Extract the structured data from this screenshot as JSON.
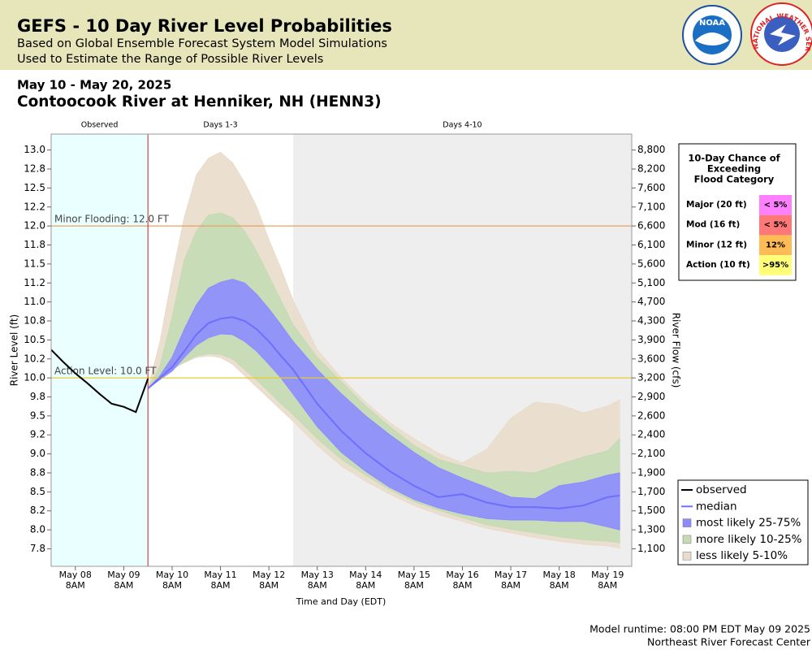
{
  "header": {
    "title": "GEFS - 10 Day River Level Probabilities",
    "subtitle_lines": [
      "Based on Global Ensemble Forecast System Model Simulations",
      "Used to Estimate the Range of Possible River Levels"
    ],
    "logos": [
      "NOAA",
      "NATIONAL WEATHER SERVICE"
    ]
  },
  "chart_data": {
    "type": "line",
    "date_range": "May 10 - May 20, 2025",
    "title": "Contoocook River at Henniker, NH (HENN3)",
    "xlabel": "Time and Day (EDT)",
    "ylabel": "River Level (ft)",
    "y2label": "River Flow (cfs)",
    "periods": [
      {
        "label": "Observed",
        "start": "May 07 8PM",
        "end": "May 09 8PM",
        "color": "#eaffff"
      },
      {
        "label": "Days 1-3",
        "start": "May 09 8PM",
        "end": "May 12 8PM",
        "color": "#ffffff"
      },
      {
        "label": "Days 4-10",
        "start": "May 12 8PM",
        "end": "May 19 8PM",
        "color": "#eeeeee"
      }
    ],
    "xlim": [
      "May 07 8PM",
      "May 19 8PM"
    ],
    "xticks": [
      "May 08 8AM",
      "May 09 8AM",
      "May 10 8AM",
      "May 11 8AM",
      "May 12 8AM",
      "May 13 8AM",
      "May 14 8AM",
      "May 15 8AM",
      "May 16 8AM",
      "May 17 8AM",
      "May 18 8AM",
      "May 19 8AM"
    ],
    "ylim": [
      7.52,
      13.21
    ],
    "yticks": [
      {
        "value": 7.75,
        "label": "7.8"
      },
      {
        "value": 8,
        "label": "8.0"
      },
      {
        "value": 8.25,
        "label": "8.2"
      },
      8.5,
      {
        "value": 8.75,
        "label": "8.8"
      },
      {
        "value": 9,
        "label": "9.0"
      },
      {
        "value": 9.25,
        "label": "9.2"
      },
      9.5,
      {
        "value": 9.75,
        "label": "9.8"
      },
      {
        "value": 10,
        "label": "10.0"
      },
      {
        "value": 10.25,
        "label": "10.2"
      },
      10.5,
      {
        "value": 10.75,
        "label": "10.8"
      },
      {
        "value": 11,
        "label": "11.0"
      },
      {
        "value": 11.25,
        "label": "11.2"
      },
      11.5,
      {
        "value": 11.75,
        "label": "11.8"
      },
      {
        "value": 12,
        "label": "12.0"
      },
      {
        "value": 12.25,
        "label": "12.2"
      },
      12.5,
      {
        "value": 12.75,
        "label": "12.8"
      },
      {
        "value": 13,
        "label": "13.0"
      }
    ],
    "y2ticks": [
      {
        "value": 1100,
        "label": "1,100"
      },
      {
        "value": 1300,
        "label": "1,300"
      },
      {
        "value": 1500,
        "label": "1,500"
      },
      {
        "value": 1700,
        "label": "1,700"
      },
      {
        "value": 1900,
        "label": "1,900"
      },
      {
        "value": 2100,
        "label": "2,100"
      },
      {
        "value": 2400,
        "label": "2,400"
      },
      {
        "value": 2600,
        "label": "2,600"
      },
      {
        "value": 2900,
        "label": "2,900"
      },
      {
        "value": 3200,
        "label": "3,200"
      },
      {
        "value": 3600,
        "label": "3,600"
      },
      {
        "value": 3900,
        "label": "3,900"
      },
      {
        "value": 4300,
        "label": "4,300"
      },
      {
        "value": 4700,
        "label": "4,700"
      },
      {
        "value": 5100,
        "label": "5,100"
      },
      {
        "value": 5600,
        "label": "5,600"
      },
      {
        "value": 6100,
        "label": "6,100"
      },
      {
        "value": 6600,
        "label": "6,600"
      },
      {
        "value": 7100,
        "label": "7,100"
      },
      {
        "value": 7600,
        "label": "7,600"
      },
      {
        "value": 8200,
        "label": "8,200"
      },
      {
        "value": 8800,
        "label": "8,800"
      }
    ],
    "thresholds": [
      {
        "label": "Minor Flooding: 12.0 FT",
        "value": 12,
        "color": "#e8a060"
      },
      {
        "label": "Action Level: 10.0 FT",
        "value": 10,
        "color": "#e8cc30"
      }
    ],
    "forecast_start_color": "#cc2222",
    "observed": {
      "name": "observed",
      "color": "#000000",
      "x": [
        "May 07 8PM",
        "May 08 2AM",
        "May 08 8AM",
        "May 08 2PM",
        "May 08 8PM",
        "May 09 2AM",
        "May 09 8AM",
        "May 09 2PM",
        "May 09 8PM"
      ],
      "values": [
        10.37,
        10.21,
        10.06,
        9.93,
        9.79,
        9.66,
        9.62,
        9.55,
        9.99
      ]
    },
    "forecast": {
      "x": [
        "May 09 8PM",
        "May 10 2AM",
        "May 10 8AM",
        "May 10 2PM",
        "May 10 8PM",
        "May 11 2AM",
        "May 11 8AM",
        "May 11 2PM",
        "May 11 8PM",
        "May 12 2AM",
        "May 12 8AM",
        "May 12 2PM",
        "May 12 8PM",
        "May 13 8AM",
        "May 13 8PM",
        "May 14 8AM",
        "May 14 8PM",
        "May 15 8AM",
        "May 15 8PM",
        "May 16 8AM",
        "May 16 8PM",
        "May 17 8AM",
        "May 17 8PM",
        "May 18 8AM",
        "May 18 8PM",
        "May 19 8AM",
        "May 19 2PM"
      ],
      "median": {
        "name": "median",
        "color": "#6e6eff",
        "values": [
          9.86,
          10.0,
          10.14,
          10.35,
          10.57,
          10.72,
          10.78,
          10.8,
          10.75,
          10.64,
          10.48,
          10.29,
          10.11,
          9.66,
          9.3,
          9.01,
          8.77,
          8.58,
          8.43,
          8.47,
          8.36,
          8.3,
          8.3,
          8.28,
          8.32,
          8.43,
          8.45
        ]
      },
      "bands": [
        {
          "name": "most likely 25-75%",
          "color": "#8c8cff",
          "lower": [
            9.86,
            9.98,
            10.09,
            10.27,
            10.43,
            10.53,
            10.58,
            10.57,
            10.48,
            10.35,
            10.18,
            10.0,
            9.79,
            9.36,
            9.02,
            8.77,
            8.56,
            8.4,
            8.29,
            8.21,
            8.15,
            8.13,
            8.13,
            8.11,
            8.11,
            8.04,
            8.0
          ],
          "upper": [
            9.86,
            10.03,
            10.27,
            10.64,
            10.96,
            11.18,
            11.26,
            11.3,
            11.25,
            11.1,
            10.91,
            10.7,
            10.48,
            10.11,
            9.79,
            9.5,
            9.25,
            9.02,
            8.82,
            8.68,
            8.56,
            8.43,
            8.41,
            8.58,
            8.63,
            8.72,
            8.75
          ]
        },
        {
          "name": "more likely 10-25%",
          "color": "#c4dbb4",
          "lower": [
            9.86,
            9.99,
            10.11,
            10.21,
            10.29,
            10.32,
            10.31,
            10.25,
            10.11,
            9.97,
            9.82,
            9.66,
            9.52,
            9.2,
            8.93,
            8.72,
            8.53,
            8.37,
            8.26,
            8.16,
            8.07,
            8.01,
            7.96,
            7.91,
            7.87,
            7.85,
            7.83
          ],
          "upper": [
            9.86,
            10.16,
            10.8,
            11.55,
            11.93,
            12.14,
            12.17,
            12.11,
            11.93,
            11.66,
            11.34,
            11.02,
            10.7,
            10.27,
            9.95,
            9.63,
            9.36,
            9.11,
            8.93,
            8.84,
            8.75,
            8.77,
            8.75,
            8.86,
            8.96,
            9.04,
            9.2
          ]
        },
        {
          "name": "less likely 5-10%",
          "color": "#e9dccb",
          "lower": [
            9.86,
            9.99,
            10.12,
            10.2,
            10.27,
            10.29,
            10.27,
            10.18,
            10.03,
            9.88,
            9.73,
            9.58,
            9.43,
            9.11,
            8.84,
            8.64,
            8.47,
            8.32,
            8.2,
            8.11,
            8.02,
            7.96,
            7.9,
            7.85,
            7.81,
            7.79,
            7.76
          ],
          "upper": [
            9.86,
            10.48,
            11.34,
            12.11,
            12.67,
            12.89,
            12.97,
            12.83,
            12.57,
            12.25,
            11.82,
            11.44,
            11.02,
            10.37,
            10.0,
            9.68,
            9.41,
            9.2,
            9.01,
            8.88,
            9.06,
            9.47,
            9.68,
            9.65,
            9.54,
            9.63,
            9.71
          ]
        }
      ]
    },
    "legend": "right"
  },
  "flood_table": {
    "title_lines": [
      "10-Day Chance of",
      "Exceeding",
      "Flood Category"
    ],
    "rows": [
      {
        "category": "Major (20 ft)",
        "chance": "< 5%",
        "color": "#ff80ff"
      },
      {
        "category": "Mod (16 ft)",
        "chance": "< 5%",
        "color": "#ff7878"
      },
      {
        "category": "Minor (12 ft)",
        "chance": "12%",
        "color": "#ffbb55"
      },
      {
        "category": "Action (10 ft)",
        "chance": ">95%",
        "color": "#ffff78"
      }
    ]
  },
  "footer": {
    "runtime": "Model runtime: 08:00 PM EDT May 09 2025",
    "center": "Northeast River Forecast Center"
  }
}
